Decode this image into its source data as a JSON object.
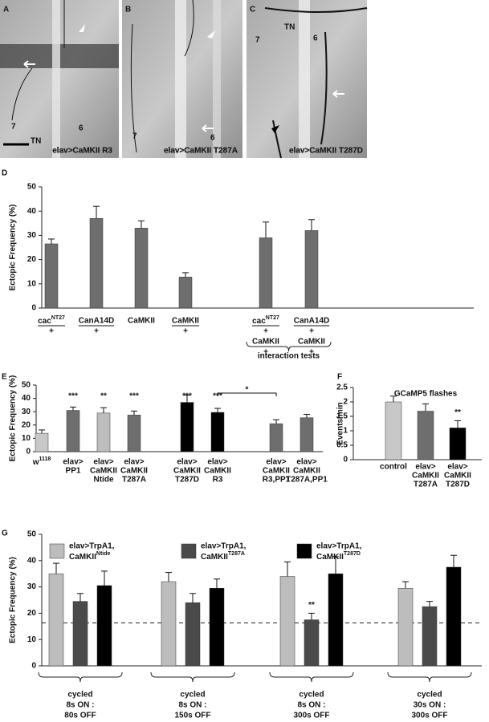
{
  "micrographs": [
    {
      "letter": "A",
      "labels": [
        "7",
        "6",
        "TN"
      ],
      "caption": "elav>CaMKII R3"
    },
    {
      "letter": "B",
      "labels": [
        "7",
        "6"
      ],
      "caption": "elav>CaMKII T287A"
    },
    {
      "letter": "C",
      "labels": [
        "TN",
        "7",
        "6"
      ],
      "caption": "elav>CaMKII T287D"
    }
  ],
  "chart_data": [
    {
      "type": "bar",
      "panel": "D",
      "y_label": "Ectopic Frequency (%)",
      "ylim": [
        0,
        50
      ],
      "yticks": [
        0,
        10,
        20,
        30,
        40,
        50
      ],
      "fraction": true,
      "categories": [
        [
          {
            "text": "cac",
            "sup": "NT27"
          },
          "+"
        ],
        [
          "CanA14D",
          "+"
        ],
        [
          "CaMKII"
        ],
        [
          "CaMKII",
          "+"
        ],
        [
          {
            "text": "cac",
            "sup": "NT27"
          },
          "+",
          "CaMKII",
          "+"
        ],
        [
          "CanA14D",
          "+",
          "CaMKII",
          "+"
        ]
      ],
      "group_labels": [
        {
          "text": "interaction tests",
          "from": 4,
          "to": 5
        }
      ],
      "series": [
        {
          "color": "#6e6e6e",
          "values": [
            26.5,
            37,
            33,
            12.8,
            29,
            32
          ],
          "errors": [
            2,
            5,
            3,
            1.8,
            6.5,
            4.5
          ]
        }
      ]
    },
    {
      "type": "bar",
      "panel": "E",
      "y_label": "Ectopic Frequency (%)",
      "ylim": [
        0,
        50
      ],
      "yticks": [
        0,
        10,
        20,
        30,
        40,
        50
      ],
      "categories": [
        [
          {
            "text": "w",
            "sup": "1118"
          }
        ],
        [
          "elav>",
          "PP1"
        ],
        [
          "elav>",
          "CaMKII",
          "Ntide"
        ],
        [
          "elav>",
          "CaMKII",
          "T287A"
        ],
        [
          "elav>",
          "CaMKII",
          "T287D"
        ],
        [
          "elav>",
          "CaMKII",
          "R3"
        ],
        [
          "elav>",
          "CaMKII",
          "R3,PP1"
        ],
        [
          "elav>",
          "CaMKII",
          "T287A,PP1"
        ]
      ],
      "bracket": {
        "from": 5,
        "to": 6,
        "label": "*"
      },
      "series": [
        {
          "colors": [
            "#c8c8c8",
            "#6e6e6e",
            "#bdbdbd",
            "#6e6e6e",
            "#000000",
            "#000000",
            "#6e6e6e",
            "#6e6e6e"
          ],
          "values": [
            13.8,
            31,
            29,
            27.5,
            37,
            29.5,
            21,
            25.5
          ],
          "errors": [
            2.5,
            2.5,
            4,
            3,
            5.5,
            3,
            3,
            2.5
          ],
          "significance": [
            "",
            "***",
            "**",
            "***",
            "***",
            "***",
            null,
            null
          ]
        }
      ]
    },
    {
      "type": "bar",
      "panel": "F",
      "title": "GCaMP5 flashes",
      "y_label": "Events/min",
      "ylim": [
        0,
        2.5
      ],
      "yticks": [
        0,
        0.5,
        1,
        {
          "value": 1.5,
          "label": "1.5"
        },
        2,
        2.5
      ],
      "categories": [
        [
          "control"
        ],
        [
          "elav>",
          "CaMKII",
          "T287A"
        ],
        [
          "elav>",
          "CaMKII",
          "T287D"
        ]
      ],
      "series": [
        {
          "colors": [
            "#c8c8c8",
            "#6e6e6e",
            "#000000"
          ],
          "values": [
            2.0,
            1.68,
            1.1
          ],
          "errors": [
            0.2,
            0.25,
            0.25
          ],
          "significance": [
            null,
            null,
            "**"
          ]
        }
      ]
    },
    {
      "type": "bar",
      "panel": "G",
      "y_label": "Ectopic Frequency (%)",
      "ylim": [
        0,
        50
      ],
      "yticks": [
        0,
        10,
        20,
        30,
        40,
        50
      ],
      "reference_line": 16.3,
      "categories": [
        [
          "cycled",
          "8s ON :",
          "80s OFF"
        ],
        [
          "cycled",
          "8s ON :",
          "150s OFF"
        ],
        [
          "cycled",
          "8s ON :",
          "300s OFF"
        ],
        [
          "cycled",
          "30s ON :",
          "300s OFF"
        ]
      ],
      "series": [
        {
          "name": [
            "elav>TrpA1,",
            {
              "text": "CaMKII",
              "sup": "Ntide"
            }
          ],
          "color": "#bdbdbd",
          "values": [
            35,
            32,
            34,
            29.5
          ],
          "errors": [
            4,
            3.5,
            5.5,
            2.5
          ]
        },
        {
          "name": [
            "elav>TrpA1,",
            {
              "text": "CaMKII",
              "sup": "T287A"
            }
          ],
          "color": "#4a4a4a",
          "values": [
            24.5,
            24,
            17.5,
            22.5
          ],
          "errors": [
            3,
            3.5,
            2.5,
            2
          ],
          "significance": [
            null,
            null,
            "**",
            null
          ]
        },
        {
          "name": [
            "elav>TrpA1,",
            {
              "text": "CaMKII",
              "sup": "T287D"
            }
          ],
          "color": "#000000",
          "values": [
            30.5,
            29.5,
            35,
            37.5
          ],
          "errors": [
            5.5,
            3.5,
            6.5,
            4.5
          ]
        }
      ]
    }
  ]
}
